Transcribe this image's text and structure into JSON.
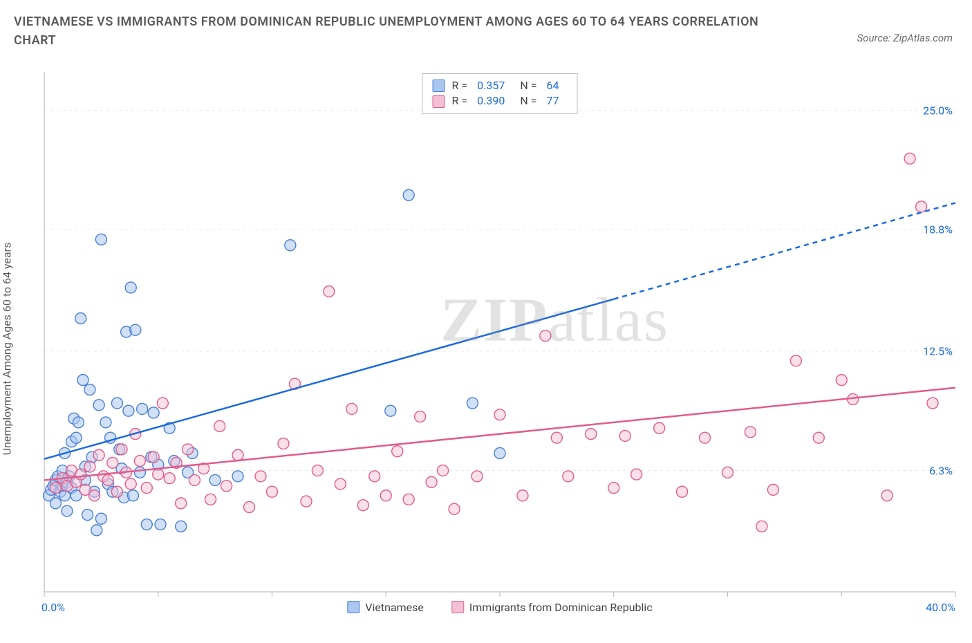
{
  "title": "VIETNAMESE VS IMMIGRANTS FROM DOMINICAN REPUBLIC UNEMPLOYMENT AMONG AGES 60 TO 64 YEARS CORRELATION CHART",
  "source": "Source: ZipAtlas.com",
  "ylabel": "Unemployment Among Ages 60 to 64 years",
  "watermark": "ZIPatlas",
  "chart": {
    "type": "scatter",
    "xlim": [
      0,
      40
    ],
    "ylim": [
      0,
      27
    ],
    "x_min_label": "0.0%",
    "x_max_label": "40.0%",
    "y_ticks": [
      6.3,
      12.5,
      18.8,
      25.0
    ],
    "y_tick_labels": [
      "6.3%",
      "12.5%",
      "18.8%",
      "25.0%"
    ],
    "x_tick_positions": [
      0,
      5,
      10,
      15,
      20,
      25,
      30,
      35,
      40
    ],
    "background_color": "#ffffff",
    "grid_color": "#e7e7e7",
    "axis_color": "#bfbfbf",
    "marker_radius": 8,
    "marker_stroke_width": 1.4,
    "series": [
      {
        "name": "Vietnamese",
        "fill": "#a9c6f0",
        "stroke": "#4a7fd6",
        "fill_opacity": 0.55,
        "R": "0.357",
        "N": "64",
        "trend": {
          "x1": 0,
          "y1": 6.9,
          "x2_solid": 25,
          "y2_solid": 15.2,
          "x2_dash": 40,
          "y2_dash": 20.2,
          "color": "#1b6ae0",
          "width": 2.5
        },
        "points": [
          [
            0.2,
            5.0
          ],
          [
            0.3,
            5.3
          ],
          [
            0.4,
            5.5
          ],
          [
            0.5,
            4.6
          ],
          [
            0.5,
            5.8
          ],
          [
            0.6,
            6.0
          ],
          [
            0.7,
            5.2
          ],
          [
            0.8,
            5.5
          ],
          [
            0.8,
            6.3
          ],
          [
            0.9,
            5.0
          ],
          [
            0.9,
            7.2
          ],
          [
            1.0,
            5.7
          ],
          [
            1.0,
            4.2
          ],
          [
            1.1,
            6.0
          ],
          [
            1.2,
            5.4
          ],
          [
            1.2,
            7.8
          ],
          [
            1.3,
            9.0
          ],
          [
            1.4,
            5.0
          ],
          [
            1.4,
            8.0
          ],
          [
            1.5,
            8.8
          ],
          [
            1.6,
            14.2
          ],
          [
            1.7,
            11.0
          ],
          [
            1.8,
            5.8
          ],
          [
            1.8,
            6.5
          ],
          [
            1.9,
            4.0
          ],
          [
            2.0,
            10.5
          ],
          [
            2.1,
            7.0
          ],
          [
            2.2,
            5.2
          ],
          [
            2.3,
            3.2
          ],
          [
            2.4,
            9.7
          ],
          [
            2.5,
            3.8
          ],
          [
            2.5,
            18.3
          ],
          [
            2.7,
            8.8
          ],
          [
            2.8,
            5.6
          ],
          [
            2.9,
            8.0
          ],
          [
            3.0,
            5.2
          ],
          [
            3.2,
            9.8
          ],
          [
            3.3,
            7.4
          ],
          [
            3.4,
            6.4
          ],
          [
            3.5,
            4.9
          ],
          [
            3.6,
            13.5
          ],
          [
            3.7,
            9.4
          ],
          [
            3.8,
            15.8
          ],
          [
            3.9,
            5.0
          ],
          [
            4.0,
            13.6
          ],
          [
            4.2,
            6.2
          ],
          [
            4.3,
            9.5
          ],
          [
            4.5,
            3.5
          ],
          [
            4.7,
            7.0
          ],
          [
            4.8,
            9.3
          ],
          [
            5.0,
            6.6
          ],
          [
            5.1,
            3.5
          ],
          [
            5.5,
            8.5
          ],
          [
            5.7,
            6.8
          ],
          [
            6.0,
            3.4
          ],
          [
            6.3,
            6.2
          ],
          [
            6.5,
            7.2
          ],
          [
            7.5,
            5.8
          ],
          [
            8.5,
            6.0
          ],
          [
            10.8,
            18.0
          ],
          [
            15.2,
            9.4
          ],
          [
            16.0,
            20.6
          ],
          [
            18.8,
            9.8
          ],
          [
            20.0,
            7.2
          ]
        ]
      },
      {
        "name": "Immigrants from Dominican Republic",
        "fill": "#f3c1d3",
        "stroke": "#e15b8c",
        "fill_opacity": 0.5,
        "R": "0.390",
        "N": "77",
        "trend": {
          "x1": 0,
          "y1": 5.8,
          "x2_solid": 40,
          "y2_solid": 10.6,
          "x2_dash": 40,
          "y2_dash": 10.6,
          "color": "#e15b8c",
          "width": 2.5
        },
        "points": [
          [
            0.5,
            5.4
          ],
          [
            0.8,
            5.9
          ],
          [
            1.0,
            5.5
          ],
          [
            1.2,
            6.3
          ],
          [
            1.4,
            5.7
          ],
          [
            1.6,
            6.1
          ],
          [
            1.8,
            5.3
          ],
          [
            2.0,
            6.5
          ],
          [
            2.2,
            5.0
          ],
          [
            2.4,
            7.1
          ],
          [
            2.6,
            6.0
          ],
          [
            2.8,
            5.8
          ],
          [
            3.0,
            6.7
          ],
          [
            3.2,
            5.2
          ],
          [
            3.4,
            7.4
          ],
          [
            3.6,
            6.2
          ],
          [
            3.8,
            5.6
          ],
          [
            4.0,
            8.2
          ],
          [
            4.2,
            6.8
          ],
          [
            4.5,
            5.4
          ],
          [
            4.8,
            7.0
          ],
          [
            5.0,
            6.1
          ],
          [
            5.2,
            9.8
          ],
          [
            5.5,
            5.9
          ],
          [
            5.8,
            6.7
          ],
          [
            6.0,
            4.6
          ],
          [
            6.3,
            7.4
          ],
          [
            6.6,
            5.8
          ],
          [
            7.0,
            6.4
          ],
          [
            7.3,
            4.8
          ],
          [
            7.7,
            8.6
          ],
          [
            8.0,
            5.5
          ],
          [
            8.5,
            7.1
          ],
          [
            9.0,
            4.4
          ],
          [
            9.5,
            6.0
          ],
          [
            10.0,
            5.2
          ],
          [
            10.5,
            7.7
          ],
          [
            11.0,
            10.8
          ],
          [
            11.5,
            4.7
          ],
          [
            12.0,
            6.3
          ],
          [
            12.5,
            15.6
          ],
          [
            13.0,
            5.6
          ],
          [
            13.5,
            9.5
          ],
          [
            14.0,
            4.5
          ],
          [
            14.5,
            6.0
          ],
          [
            15.0,
            5.0
          ],
          [
            15.5,
            7.3
          ],
          [
            16.0,
            4.8
          ],
          [
            16.5,
            9.1
          ],
          [
            17.0,
            5.7
          ],
          [
            17.5,
            6.3
          ],
          [
            18.0,
            4.3
          ],
          [
            19.0,
            6.0
          ],
          [
            20.0,
            9.2
          ],
          [
            21.0,
            5.0
          ],
          [
            22.0,
            13.3
          ],
          [
            22.5,
            8.0
          ],
          [
            23.0,
            6.0
          ],
          [
            24.0,
            8.2
          ],
          [
            25.0,
            5.4
          ],
          [
            25.5,
            8.1
          ],
          [
            26.0,
            6.1
          ],
          [
            27.0,
            8.5
          ],
          [
            28.0,
            5.2
          ],
          [
            29.0,
            8.0
          ],
          [
            30.0,
            6.2
          ],
          [
            31.0,
            8.3
          ],
          [
            31.5,
            3.4
          ],
          [
            32.0,
            5.3
          ],
          [
            33.0,
            12.0
          ],
          [
            34.0,
            8.0
          ],
          [
            35.0,
            11.0
          ],
          [
            35.5,
            10.0
          ],
          [
            37.0,
            5.0
          ],
          [
            38.0,
            22.5
          ],
          [
            38.5,
            20.0
          ],
          [
            39.0,
            9.8
          ]
        ]
      }
    ]
  },
  "legend_bottom": [
    {
      "label": "Vietnamese",
      "fill": "#a9c6f0",
      "stroke": "#4a7fd6"
    },
    {
      "label": "Immigrants from Dominican Republic",
      "fill": "#f3c1d3",
      "stroke": "#e15b8c"
    }
  ]
}
